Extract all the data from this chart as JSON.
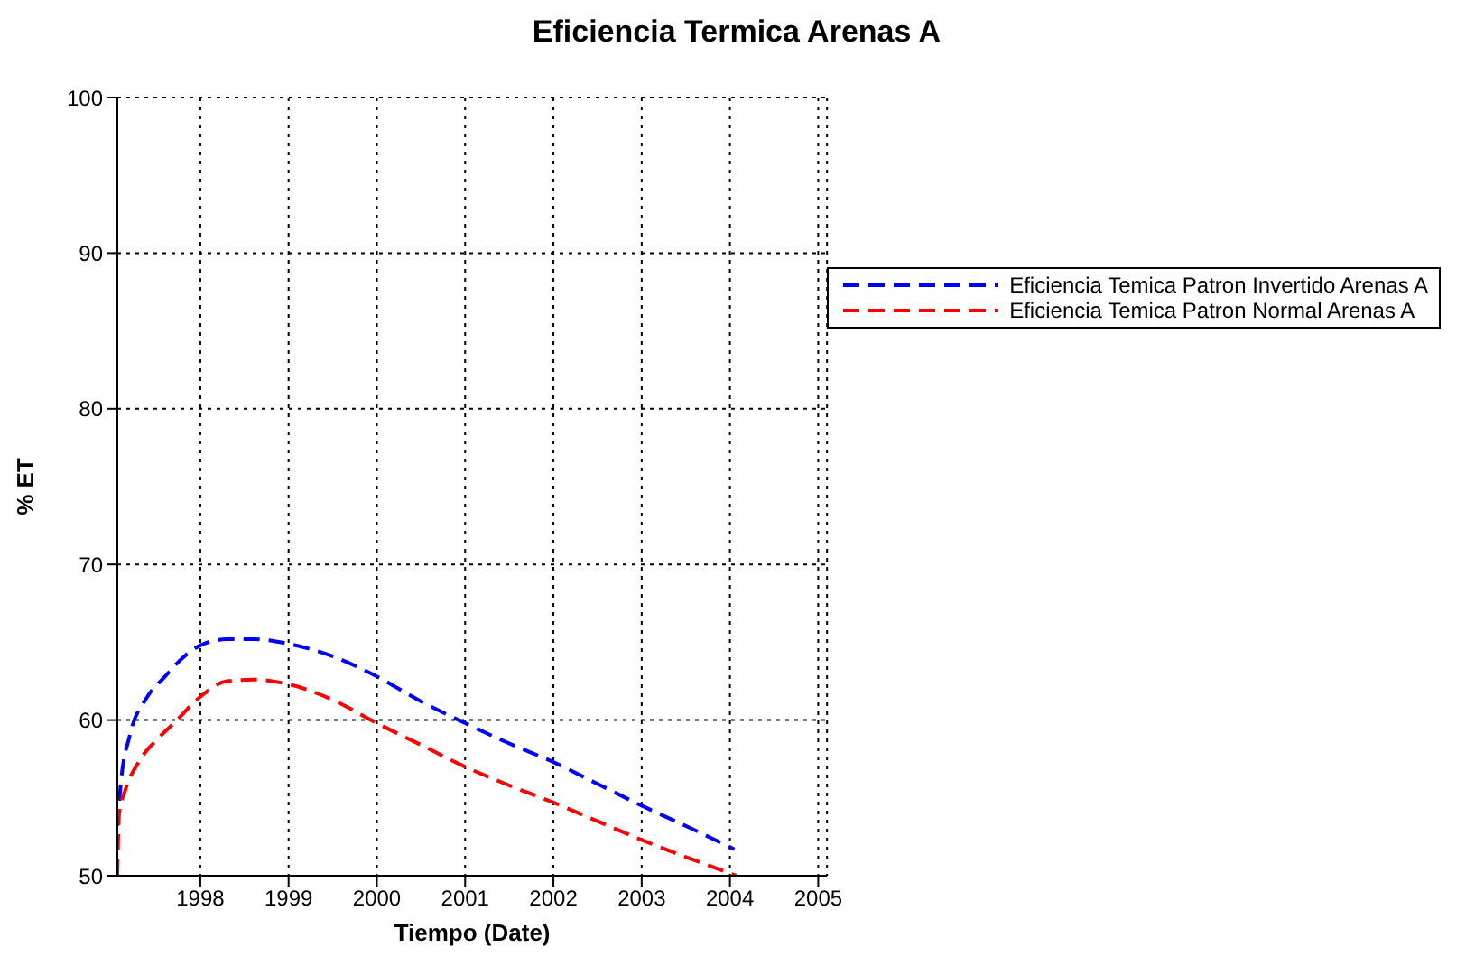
{
  "chart_data": {
    "type": "line",
    "title": "Eficiencia Termica Arenas A",
    "xlabel": "Tiempo (Date)",
    "ylabel": "% ET",
    "xlim": [
      1997.06,
      2005.1
    ],
    "xticks": [
      1998,
      1999,
      2000,
      2001,
      2002,
      2003,
      2004,
      2005
    ],
    "ylim": [
      50,
      100
    ],
    "yticks": [
      50,
      60,
      70,
      80,
      90,
      100
    ],
    "grid": true,
    "legend": "top right",
    "marker": "none",
    "series": [
      {
        "name": "Eficiencia Temica Patron Invertido Arenas A",
        "color": "#0000ff",
        "line_style": "dashed",
        "x": [
          1997.06,
          1997.1,
          1997.2,
          1997.4,
          1997.6,
          1997.8,
          1998,
          1998.3,
          1998.6,
          1999,
          1999.5,
          2000,
          2000.5,
          2001,
          2001.5,
          2002,
          2002.5,
          2003,
          2003.5,
          2004.05
        ],
        "values": [
          53.2,
          56,
          59,
          61.5,
          62.8,
          64,
          64.8,
          65.2,
          65.2,
          64.9,
          64.1,
          62.8,
          61.2,
          59.8,
          58.5,
          57.3,
          55.9,
          54.5,
          53.2,
          51.7
        ]
      },
      {
        "name": "Eficiencia Temica Patron Normal Arenas A",
        "color": "#ff0000",
        "line_style": "dashed",
        "x": [
          1997.06,
          1997.08,
          1997.15,
          1997.3,
          1997.5,
          1997.7,
          1998,
          1998.3,
          1998.6,
          1999,
          1999.5,
          2000,
          2000.5,
          2001,
          2001.5,
          2002,
          2002.5,
          2003,
          2003.5,
          2004.07
        ],
        "values": [
          50,
          54,
          55.5,
          57.3,
          58.7,
          59.8,
          61.5,
          62.5,
          62.6,
          62.3,
          61.3,
          59.8,
          58.4,
          57,
          55.8,
          54.7,
          53.5,
          52.3,
          51.2,
          50
        ]
      }
    ]
  }
}
